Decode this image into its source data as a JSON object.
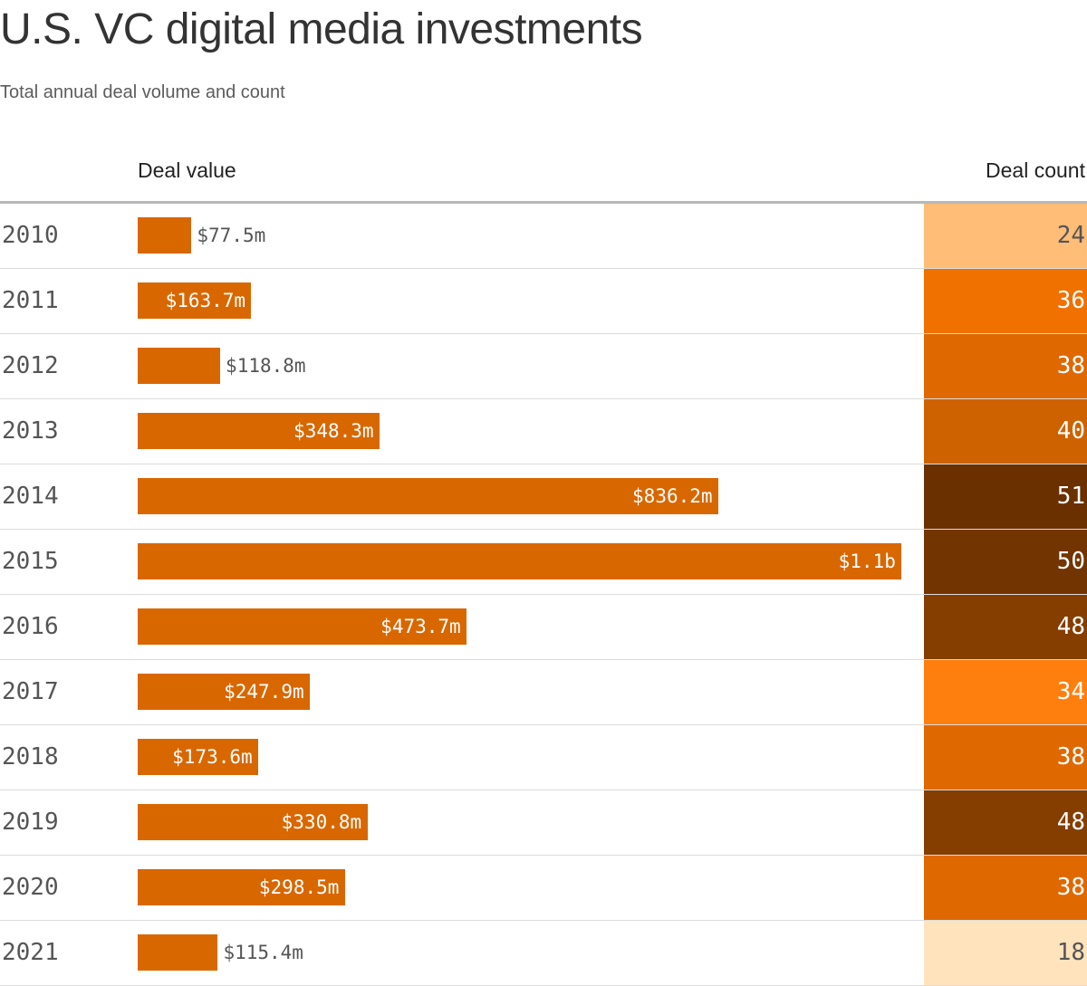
{
  "chart": {
    "title": "U.S. VC digital media investments",
    "subtitle": "Total annual deal volume and count",
    "value_header": "Deal value",
    "count_header": "Deal count"
  },
  "colors": {
    "bar": "#d96700",
    "label_inside": "#ffffff",
    "label_outside": "#555555",
    "count_light_text": "#555555",
    "count_dark_text": "#ffffff"
  },
  "chart_data": {
    "type": "bar",
    "title": "U.S. VC digital media investments",
    "subtitle": "Total annual deal volume and count",
    "categories": [
      "2010",
      "2011",
      "2012",
      "2013",
      "2014",
      "2015",
      "2016",
      "2017",
      "2018",
      "2019",
      "2020",
      "2021"
    ],
    "series": [
      {
        "name": "Deal value",
        "unit": "USD millions",
        "values": [
          77.5,
          163.7,
          118.8,
          348.3,
          836.2,
          1100,
          473.7,
          247.9,
          173.6,
          330.8,
          298.5,
          115.4
        ],
        "labels": [
          "$77.5m",
          "$163.7m",
          "$118.8m",
          "$348.3m",
          "$836.2m",
          "$1.1b",
          "$473.7m",
          "$247.9m",
          "$173.6m",
          "$330.8m",
          "$298.5m",
          "$115.4m"
        ]
      },
      {
        "name": "Deal count",
        "values": [
          24,
          36,
          38,
          40,
          51,
          50,
          48,
          34,
          38,
          48,
          38,
          18
        ],
        "cell_colors": [
          "#ffbd78",
          "#f07000",
          "#e06800",
          "#ce6200",
          "#6a3000",
          "#723400",
          "#853e00",
          "#ff7f0e",
          "#e06800",
          "#853e00",
          "#e06800",
          "#ffe3bc"
        ]
      }
    ],
    "value_axis": [
      0,
      1122
    ],
    "grid": false,
    "legend": "none"
  }
}
